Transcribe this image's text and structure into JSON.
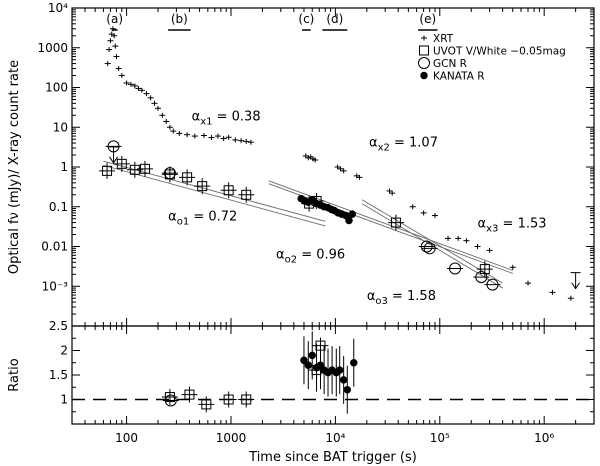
{
  "chart_data": [
    {
      "type": "scatter",
      "xlabel": "Time since BAT trigger (s)",
      "ylabel": "Optical fν (mJy)/ X-ray count rate",
      "xscale": "log",
      "yscale": "log",
      "xlim": [
        30,
        3000000
      ],
      "ylim": [
        0.0001,
        10000
      ],
      "x_ticks": [
        {
          "value": 100,
          "label": "100"
        },
        {
          "value": 1000,
          "label": "1000"
        },
        {
          "value": 10000,
          "label": "10⁴"
        },
        {
          "value": 100000,
          "label": "10⁵"
        },
        {
          "value": 1000000,
          "label": "10⁶"
        }
      ],
      "y_ticks": [
        {
          "value": 0.001,
          "label": "10⁻³"
        },
        {
          "value": 0.01,
          "label": "0.01"
        },
        {
          "value": 0.1,
          "label": "0.1"
        },
        {
          "value": 1,
          "label": "1"
        },
        {
          "value": 10,
          "label": "10"
        },
        {
          "value": 100,
          "label": "100"
        },
        {
          "value": 1000,
          "label": "1000"
        },
        {
          "value": 10000,
          "label": "10⁴"
        }
      ],
      "legend_position": "top-right",
      "legend": [
        {
          "marker": "plus",
          "label": "XRT"
        },
        {
          "marker": "square",
          "label": "UVOT V/White −0.05mag"
        },
        {
          "marker": "circle",
          "label": "GCN R"
        },
        {
          "marker": "dot",
          "label": "KANATA R"
        }
      ],
      "epochs": [
        {
          "label": "(a)",
          "from": 72,
          "to": 82
        },
        {
          "label": "(b)",
          "from": 250,
          "to": 410
        },
        {
          "label": "(c)",
          "from": 4800,
          "to": 5800
        },
        {
          "label": "(d)",
          "from": 7500,
          "to": 13000
        },
        {
          "label": "(e)",
          "from": 62000,
          "to": 95000
        }
      ],
      "annotations": [
        {
          "text": "αx1 = 0.38",
          "x": 420,
          "y": 15
        },
        {
          "text": "αx2 = 1.07",
          "x": 21000,
          "y": 3.3
        },
        {
          "text": "αx3 = 1.53",
          "x": 230000,
          "y": 0.03
        },
        {
          "text": "αo1 = 0.72",
          "x": 250,
          "y": 0.045
        },
        {
          "text": "αo2 = 0.96",
          "x": 2700,
          "y": 0.005
        },
        {
          "text": "αo3 = 1.58",
          "x": 20000,
          "y": 0.00045
        }
      ],
      "series": [
        {
          "name": "XRT",
          "marker": "plus",
          "points": [
            {
              "x": 66,
              "y": 400
            },
            {
              "x": 68,
              "y": 900
            },
            {
              "x": 70,
              "y": 1500
            },
            {
              "x": 72,
              "y": 2200
            },
            {
              "x": 74,
              "y": 3000
            },
            {
              "x": 76,
              "y": 2000
            },
            {
              "x": 78,
              "y": 1100
            },
            {
              "x": 80,
              "y": 600
            },
            {
              "x": 84,
              "y": 300
            },
            {
              "x": 90,
              "y": 200
            },
            {
              "x": 100,
              "y": 130
            },
            {
              "x": 110,
              "y": 120
            },
            {
              "x": 120,
              "y": 110
            },
            {
              "x": 130,
              "y": 95
            },
            {
              "x": 140,
              "y": 85
            },
            {
              "x": 155,
              "y": 70
            },
            {
              "x": 170,
              "y": 55
            },
            {
              "x": 185,
              "y": 40
            },
            {
              "x": 200,
              "y": 30
            },
            {
              "x": 220,
              "y": 20
            },
            {
              "x": 240,
              "y": 14
            },
            {
              "x": 260,
              "y": 10
            },
            {
              "x": 280,
              "y": 8
            },
            {
              "x": 320,
              "y": 7
            },
            {
              "x": 380,
              "y": 6.5
            },
            {
              "x": 450,
              "y": 6
            },
            {
              "x": 550,
              "y": 6.2
            },
            {
              "x": 650,
              "y": 5.5
            },
            {
              "x": 750,
              "y": 6
            },
            {
              "x": 850,
              "y": 5.2
            },
            {
              "x": 950,
              "y": 5.6
            },
            {
              "x": 1100,
              "y": 4.8
            },
            {
              "x": 1250,
              "y": 4.6
            },
            {
              "x": 1400,
              "y": 4.4
            },
            {
              "x": 1550,
              "y": 4.2
            },
            {
              "x": 5200,
              "y": 1.9
            },
            {
              "x": 5500,
              "y": 1.7
            },
            {
              "x": 5800,
              "y": 1.8
            },
            {
              "x": 6100,
              "y": 1.6
            },
            {
              "x": 6400,
              "y": 1.5
            },
            {
              "x": 10500,
              "y": 1.0
            },
            {
              "x": 11200,
              "y": 0.9
            },
            {
              "x": 12000,
              "y": 0.8
            },
            {
              "x": 16000,
              "y": 0.6
            },
            {
              "x": 17000,
              "y": 0.55
            },
            {
              "x": 33000,
              "y": 0.25
            },
            {
              "x": 35000,
              "y": 0.22
            },
            {
              "x": 55000,
              "y": 0.1
            },
            {
              "x": 70000,
              "y": 0.07
            },
            {
              "x": 90000,
              "y": 0.06
            },
            {
              "x": 120000,
              "y": 0.016
            },
            {
              "x": 150000,
              "y": 0.016
            },
            {
              "x": 180000,
              "y": 0.014
            },
            {
              "x": 230000,
              "y": 0.01
            },
            {
              "x": 300000,
              "y": 0.008
            },
            {
              "x": 500000,
              "y": 0.003
            },
            {
              "x": 700000,
              "y": 0.0012
            },
            {
              "x": 1200000,
              "y": 0.0007
            },
            {
              "x": 1800000,
              "y": 0.0005
            }
          ]
        },
        {
          "name": "UVOT V/White −0.05mag",
          "marker": "square",
          "points": [
            {
              "x": 65,
              "y": 0.8
            },
            {
              "x": 90,
              "y": 1.2
            },
            {
              "x": 120,
              "y": 0.85
            },
            {
              "x": 150,
              "y": 0.9
            },
            {
              "x": 260,
              "y": 0.65
            },
            {
              "x": 380,
              "y": 0.55
            },
            {
              "x": 530,
              "y": 0.33
            },
            {
              "x": 950,
              "y": 0.26
            },
            {
              "x": 1400,
              "y": 0.2
            },
            {
              "x": 5600,
              "y": 0.12
            },
            {
              "x": 6600,
              "y": 0.14
            },
            {
              "x": 38000,
              "y": 0.04
            },
            {
              "x": 270000,
              "y": 0.0027
            }
          ]
        },
        {
          "name": "GCN R",
          "marker": "circle",
          "points": [
            {
              "x": 75,
              "y": 3.3
            },
            {
              "x": 260,
              "y": 0.7
            },
            {
              "x": 75000,
              "y": 0.01
            },
            {
              "x": 80000,
              "y": 0.009
            },
            {
              "x": 140000,
              "y": 0.0028
            },
            {
              "x": 250000,
              "y": 0.0017
            },
            {
              "x": 320000,
              "y": 0.0011
            }
          ]
        },
        {
          "name": "KANATA R",
          "marker": "dot",
          "points": [
            {
              "x": 4700,
              "y": 0.16
            },
            {
              "x": 5100,
              "y": 0.14
            },
            {
              "x": 5500,
              "y": 0.13
            },
            {
              "x": 6000,
              "y": 0.15
            },
            {
              "x": 6600,
              "y": 0.12
            },
            {
              "x": 7200,
              "y": 0.11
            },
            {
              "x": 7800,
              "y": 0.1
            },
            {
              "x": 8500,
              "y": 0.095
            },
            {
              "x": 9200,
              "y": 0.085
            },
            {
              "x": 9800,
              "y": 0.08
            },
            {
              "x": 10600,
              "y": 0.07
            },
            {
              "x": 11500,
              "y": 0.065
            },
            {
              "x": 12600,
              "y": 0.06
            },
            {
              "x": 13500,
              "y": 0.045
            },
            {
              "x": 14500,
              "y": 0.065
            }
          ]
        }
      ],
      "upper_limits": [
        {
          "x": 75,
          "y": 3.2
        },
        {
          "x": 2000000,
          "y": 0.0022
        }
      ],
      "fit_lines": [
        {
          "slope": 0.72,
          "from": [
            60,
            1.4
          ],
          "to": [
            8000,
            0.043
          ]
        },
        {
          "slope": 0.72,
          "from": [
            60,
            1.1
          ],
          "to": [
            8000,
            0.033
          ]
        },
        {
          "slope": 0.96,
          "from": [
            2300,
            0.45
          ],
          "to": [
            500000,
            0.0025
          ]
        },
        {
          "slope": 0.96,
          "from": [
            2300,
            0.38
          ],
          "to": [
            500000,
            0.0021
          ]
        },
        {
          "slope": 1.58,
          "from": [
            18000,
            0.12
          ],
          "to": [
            400000,
            0.0009
          ]
        },
        {
          "slope": 1.58,
          "from": [
            18000,
            0.15
          ],
          "to": [
            400000,
            0.0012
          ]
        }
      ]
    },
    {
      "type": "scatter",
      "xlabel": "Time since BAT trigger (s)",
      "ylabel": "Ratio",
      "xscale": "log",
      "xlim": [
        30,
        3000000
      ],
      "ylim": [
        0.5,
        2.5
      ],
      "y_ticks": [
        {
          "value": 1,
          "label": "1"
        },
        {
          "value": 1.5,
          "label": "1.5"
        },
        {
          "value": 2,
          "label": "2"
        },
        {
          "value": 2.5,
          "label": "2.5"
        }
      ],
      "reference_line": 1,
      "series": [
        {
          "name": "UVOT ratio",
          "marker": "square",
          "points": [
            {
              "x": 260,
              "y": 1.05
            },
            {
              "x": 400,
              "y": 1.1
            },
            {
              "x": 580,
              "y": 0.9
            },
            {
              "x": 950,
              "y": 1.0
            },
            {
              "x": 1400,
              "y": 1.0
            },
            {
              "x": 6600,
              "y": 1.6
            },
            {
              "x": 7200,
              "y": 2.1
            }
          ]
        },
        {
          "name": "GCN ratio",
          "marker": "circle",
          "points": [
            {
              "x": 265,
              "y": 0.98
            }
          ]
        },
        {
          "name": "KANATA ratio",
          "marker": "dot",
          "points": [
            {
              "x": 5000,
              "y": 1.8
            },
            {
              "x": 5500,
              "y": 1.7
            },
            {
              "x": 6000,
              "y": 1.9
            },
            {
              "x": 6600,
              "y": 1.65
            },
            {
              "x": 7200,
              "y": 1.7
            },
            {
              "x": 7800,
              "y": 1.6
            },
            {
              "x": 8500,
              "y": 1.55
            },
            {
              "x": 9300,
              "y": 1.6
            },
            {
              "x": 10200,
              "y": 1.55
            },
            {
              "x": 11000,
              "y": 1.6
            },
            {
              "x": 12000,
              "y": 1.4
            },
            {
              "x": 13000,
              "y": 1.2
            },
            {
              "x": 15000,
              "y": 1.75
            }
          ]
        }
      ]
    }
  ]
}
